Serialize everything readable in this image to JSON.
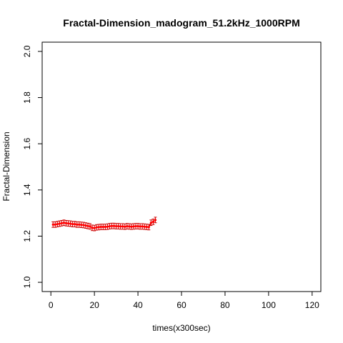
{
  "chart_data": {
    "type": "line",
    "title": "Fractal-Dimension_madogram_51.2kHz_1000RPM",
    "xlabel": "times(x300sec)",
    "ylabel": "Fractal-Dimension",
    "xlim": [
      -4,
      124
    ],
    "ylim": [
      0.96,
      2.04
    ],
    "x_ticks": [
      0,
      20,
      40,
      60,
      80,
      100,
      120
    ],
    "y_ticks": [
      1.0,
      1.2,
      1.4,
      1.6,
      1.8,
      2.0
    ],
    "grid": false,
    "legend": "none",
    "series_color": "#ff0000",
    "errorbar_color": "#cc0000",
    "x": [
      1,
      2,
      3,
      4,
      5,
      6,
      7,
      8,
      9,
      10,
      11,
      12,
      13,
      14,
      15,
      16,
      17,
      18,
      19,
      20,
      21,
      22,
      23,
      24,
      25,
      26,
      27,
      28,
      29,
      30,
      31,
      32,
      33,
      34,
      35,
      36,
      37,
      38,
      39,
      40,
      41,
      42,
      43,
      44,
      45,
      46,
      47,
      48
    ],
    "y": [
      1.25,
      1.25,
      1.252,
      1.254,
      1.256,
      1.258,
      1.256,
      1.255,
      1.254,
      1.252,
      1.252,
      1.25,
      1.25,
      1.249,
      1.248,
      1.246,
      1.244,
      1.242,
      1.236,
      1.235,
      1.238,
      1.239,
      1.24,
      1.24,
      1.24,
      1.241,
      1.243,
      1.244,
      1.244,
      1.243,
      1.243,
      1.242,
      1.242,
      1.241,
      1.243,
      1.242,
      1.241,
      1.242,
      1.243,
      1.243,
      1.242,
      1.242,
      1.241,
      1.24,
      1.239,
      1.258,
      1.262,
      1.27
    ],
    "err": [
      0.012,
      0.012,
      0.012,
      0.012,
      0.012,
      0.012,
      0.012,
      0.012,
      0.012,
      0.012,
      0.012,
      0.012,
      0.012,
      0.012,
      0.012,
      0.012,
      0.012,
      0.012,
      0.012,
      0.012,
      0.012,
      0.012,
      0.012,
      0.012,
      0.012,
      0.012,
      0.012,
      0.012,
      0.012,
      0.012,
      0.012,
      0.012,
      0.012,
      0.012,
      0.012,
      0.012,
      0.012,
      0.012,
      0.012,
      0.012,
      0.012,
      0.012,
      0.012,
      0.012,
      0.012,
      0.012,
      0.012,
      0.012
    ]
  }
}
